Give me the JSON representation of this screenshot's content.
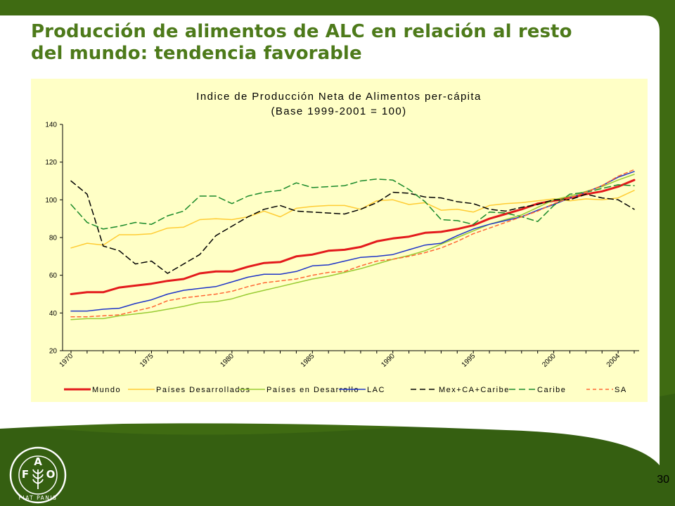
{
  "slide": {
    "title_line1": "Producción de alimentos de ALC en relación al resto",
    "title_line2": "del mundo: tendencia favorable",
    "page_number": "30"
  },
  "logo": {
    "letters": [
      "F",
      "A",
      "O"
    ],
    "motto": "FIAT PANIS"
  },
  "colors": {
    "background_green": "#3f6b12",
    "title_green": "#4d7a1a",
    "panel_yellow": "#ffffc6"
  },
  "chart_data": {
    "type": "line",
    "title": "Indice de Producción Neta de Alimentos per-cápita",
    "subtitle": "(Base 1999-2001 = 100)",
    "xlabel": "",
    "ylabel": "",
    "ylim": [
      20,
      140
    ],
    "yticks": [
      20,
      40,
      60,
      80,
      100,
      120,
      140
    ],
    "x": [
      1970,
      1971,
      1972,
      1973,
      1974,
      1975,
      1976,
      1977,
      1978,
      1979,
      1980,
      1981,
      1982,
      1983,
      1984,
      1985,
      1986,
      1987,
      1988,
      1989,
      1990,
      1991,
      1992,
      1993,
      1994,
      1995,
      1996,
      1997,
      1998,
      1999,
      2000,
      2001,
      2002,
      2003,
      2004,
      2005
    ],
    "xtick_labels": [
      "1970",
      "1975",
      "1980",
      "1985",
      "1990",
      "1995",
      "2000",
      "2004"
    ],
    "xtick_years": [
      1970,
      1975,
      1980,
      1985,
      1990,
      1995,
      2000,
      2004
    ],
    "legend_position": "bottom",
    "grid": false,
    "series": [
      {
        "name": "Mundo",
        "color": "#e31a1c",
        "dash": "solid",
        "width": 3,
        "values": [
          50,
          51,
          51,
          53.5,
          54.5,
          55.5,
          57,
          58,
          61,
          62,
          62,
          64.5,
          66.5,
          67,
          70,
          71,
          73,
          73.5,
          75,
          78,
          79.5,
          80.5,
          82.5,
          83,
          84.5,
          86.5,
          90,
          92.5,
          95,
          98,
          99.5,
          101,
          103,
          104.5,
          107,
          110.5
        ]
      },
      {
        "name": "Países Desarrollados",
        "color": "#ffcc33",
        "dash": "solid",
        "width": 1.5,
        "values": [
          74.5,
          77,
          76,
          81.5,
          81.5,
          82,
          85,
          85.5,
          89.5,
          90,
          89.5,
          91,
          94,
          91,
          95.5,
          96.5,
          97,
          97,
          95,
          99.5,
          100,
          97.5,
          98.5,
          94.5,
          95,
          93.5,
          97,
          98,
          98.5,
          99.5,
          100.5,
          99.5,
          100.5,
          100,
          101,
          105
        ]
      },
      {
        "name": "Países en Desarrollo",
        "color": "#99cc33",
        "dash": "solid",
        "width": 1.5,
        "values": [
          36.5,
          37,
          37,
          38.5,
          39.5,
          40.5,
          42,
          43.5,
          45.5,
          46,
          47.5,
          50,
          52,
          54,
          56,
          58,
          59.5,
          61.5,
          63.5,
          66,
          68.5,
          70.5,
          73,
          76.5,
          80,
          83.5,
          87,
          89.5,
          92,
          96,
          100,
          102,
          104.5,
          107,
          110.5,
          113.5
        ]
      },
      {
        "name": "LAC",
        "color": "#1f35c8",
        "dash": "solid",
        "width": 1.5,
        "values": [
          41,
          41,
          42,
          42.5,
          45,
          47,
          50,
          52,
          53,
          54,
          56.5,
          59,
          60.5,
          60.5,
          62,
          65,
          65.5,
          67.5,
          69.5,
          70,
          71,
          73.5,
          76,
          77,
          81,
          84.5,
          87,
          89,
          91,
          94.5,
          97.5,
          101,
          104,
          107.5,
          112,
          115
        ]
      },
      {
        "name": "Mex+CA+Caribe",
        "color": "#000000",
        "dash": "8,5",
        "width": 1.5,
        "values": [
          110,
          103,
          75.5,
          73,
          66,
          67.5,
          61,
          66,
          71,
          81,
          86,
          91,
          95,
          97,
          94,
          93.5,
          93,
          92.5,
          95,
          98.5,
          104,
          103.5,
          101.5,
          101,
          99,
          98,
          95,
          94,
          96,
          97.5,
          100,
          100,
          103,
          101,
          100,
          95
        ]
      },
      {
        "name": "Caribe",
        "color": "#1a8a2a",
        "dash": "9,5",
        "width": 1.5,
        "values": [
          97.5,
          88,
          84.5,
          86,
          88,
          87,
          91.5,
          94,
          102,
          102,
          98,
          102,
          104,
          105,
          109,
          106.5,
          107,
          107.5,
          110,
          111,
          110.5,
          105.5,
          99,
          89.5,
          89,
          87,
          93.5,
          93,
          91,
          88.5,
          97,
          103,
          104,
          106,
          108,
          107.5
        ]
      },
      {
        "name": "SA",
        "color": "#ff6633",
        "dash": "5,4",
        "width": 1.5,
        "values": [
          38,
          38,
          38.5,
          39,
          41,
          43,
          46.5,
          48,
          49,
          50,
          51.5,
          54,
          56,
          57,
          58,
          60,
          61.5,
          62,
          65,
          67.5,
          68.5,
          70,
          72,
          74.5,
          78,
          82,
          85,
          88,
          91,
          94,
          98,
          101,
          104,
          107.5,
          112.5,
          116
        ]
      }
    ]
  }
}
